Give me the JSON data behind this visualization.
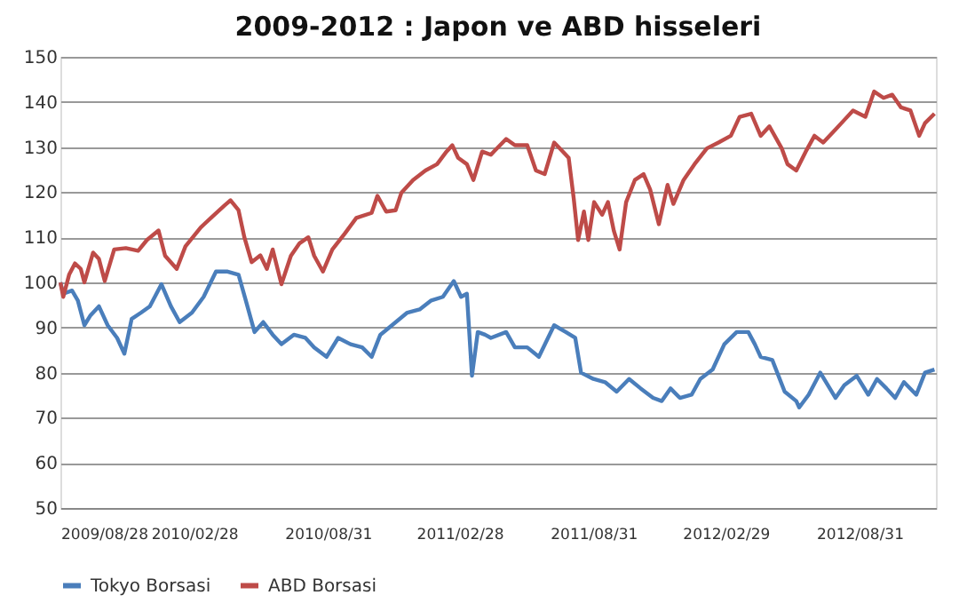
{
  "chart_data": {
    "type": "line",
    "title": "2009-2012 : Japon ve ABD hisseleri",
    "ylim": [
      50,
      150
    ],
    "yticks": [
      50,
      60,
      70,
      80,
      90,
      100,
      110,
      120,
      130,
      140,
      150
    ],
    "xlim": [
      "2009-08-28",
      "2012-12-14"
    ],
    "xticks": [
      {
        "value": "2009-08-28",
        "label": "2009/08/28"
      },
      {
        "value": "2010-02-28",
        "label": "2010/02/28"
      },
      {
        "value": "2010-08-31",
        "label": "2010/08/31"
      },
      {
        "value": "2011-02-28",
        "label": "2011/02/28"
      },
      {
        "value": "2011-08-31",
        "label": "2011/08/31"
      },
      {
        "value": "2012-02-29",
        "label": "2012/02/29"
      },
      {
        "value": "2012-08-31",
        "label": "2012/08/31"
      }
    ],
    "grid": "y",
    "legend": "bottom",
    "marker": "none",
    "line_style": "solid",
    "series": [
      {
        "name": "Tokyo Borsasi",
        "color": "#4a7ebb",
        "x": [
          "2009-08-28",
          "2009-09-01",
          "2009-09-13",
          "2009-09-21",
          "2009-09-30",
          "2009-10-08",
          "2009-10-20",
          "2009-11-01",
          "2009-11-14",
          "2009-11-24",
          "2009-12-04",
          "2009-12-17",
          "2009-12-29",
          "2010-01-14",
          "2010-01-27",
          "2010-02-08",
          "2010-02-25",
          "2010-03-13",
          "2010-03-30",
          "2010-04-15",
          "2010-04-30",
          "2010-05-10",
          "2010-05-22",
          "2010-06-03",
          "2010-06-16",
          "2010-06-28",
          "2010-07-15",
          "2010-07-31",
          "2010-08-12",
          "2010-08-29",
          "2010-09-14",
          "2010-10-01",
          "2010-10-17",
          "2010-10-30",
          "2010-11-11",
          "2010-11-27",
          "2010-12-18",
          "2011-01-04",
          "2011-01-20",
          "2011-02-05",
          "2011-02-20",
          "2011-03-02",
          "2011-03-10",
          "2011-03-17",
          "2011-03-25",
          "2011-04-04",
          "2011-04-12",
          "2011-05-03",
          "2011-05-15",
          "2011-06-01",
          "2011-06-17",
          "2011-07-08",
          "2011-07-24",
          "2011-08-06",
          "2011-08-14",
          "2011-08-31",
          "2011-09-16",
          "2011-10-02",
          "2011-10-19",
          "2011-11-04",
          "2011-11-21",
          "2011-12-03",
          "2011-12-15",
          "2011-12-28",
          "2012-01-13",
          "2012-01-25",
          "2012-02-11",
          "2012-02-27",
          "2012-03-15",
          "2012-03-31",
          "2012-04-09",
          "2012-04-17",
          "2012-05-03",
          "2012-05-20",
          "2012-06-05",
          "2012-06-09",
          "2012-06-22",
          "2012-07-08",
          "2012-07-29",
          "2012-08-10",
          "2012-08-27",
          "2012-09-12",
          "2012-09-24",
          "2012-10-07",
          "2012-10-19",
          "2012-10-31",
          "2012-11-17",
          "2012-11-29",
          "2012-12-12"
        ],
        "values": [
          100,
          97.5,
          98.2,
          96,
          90.5,
          92.6,
          94.7,
          90.5,
          87.7,
          84.2,
          91.9,
          93.3,
          94.7,
          99.6,
          94.7,
          91.2,
          93.3,
          96.8,
          102.4,
          102.4,
          101.7,
          96,
          89,
          91.2,
          88.4,
          86.3,
          88.4,
          87.7,
          85.6,
          83.5,
          87.7,
          86.3,
          85.6,
          83.5,
          88.4,
          90.5,
          93.3,
          94,
          96,
          96.8,
          100.3,
          96.8,
          97.5,
          79.3,
          89,
          88.4,
          87.7,
          89,
          85.6,
          85.6,
          83.5,
          90.5,
          89,
          87.7,
          80,
          78.6,
          77.9,
          75.8,
          78.6,
          76.5,
          74.4,
          73.7,
          76.5,
          74.4,
          75.1,
          78.6,
          80.7,
          86.3,
          89,
          89,
          86.3,
          83.5,
          82.8,
          75.8,
          73.7,
          72.3,
          75.1,
          80,
          74.4,
          77.2,
          79.3,
          75.1,
          78.6,
          76.5,
          74.4,
          77.9,
          75.1,
          80,
          80.7
        ]
      },
      {
        "name": "ABD Borsasi",
        "color": "#be4b48",
        "x": [
          "2009-08-28",
          "2009-09-01",
          "2009-09-09",
          "2009-09-17",
          "2009-09-25",
          "2009-09-30",
          "2009-10-12",
          "2009-10-20",
          "2009-10-28",
          "2009-11-10",
          "2009-11-26",
          "2009-12-13",
          "2009-12-25",
          "2010-01-10",
          "2010-01-19",
          "2010-02-04",
          "2010-02-16",
          "2010-03-09",
          "2010-03-25",
          "2010-04-11",
          "2010-04-19",
          "2010-04-30",
          "2010-05-08",
          "2010-05-18",
          "2010-05-30",
          "2010-06-08",
          "2010-06-16",
          "2010-06-28",
          "2010-07-11",
          "2010-07-23",
          "2010-08-04",
          "2010-08-12",
          "2010-08-24",
          "2010-09-06",
          "2010-09-23",
          "2010-10-09",
          "2010-10-30",
          "2010-11-07",
          "2010-11-19",
          "2010-12-02",
          "2010-12-10",
          "2010-12-26",
          "2011-01-12",
          "2011-01-28",
          "2011-02-10",
          "2011-02-18",
          "2011-02-26",
          "2011-03-10",
          "2011-03-19",
          "2011-03-31",
          "2011-04-12",
          "2011-04-16",
          "2011-05-03",
          "2011-05-15",
          "2011-06-01",
          "2011-06-13",
          "2011-06-25",
          "2011-07-08",
          "2011-07-20",
          "2011-07-28",
          "2011-08-04",
          "2011-08-10",
          "2011-08-18",
          "2011-08-24",
          "2011-09-01",
          "2011-09-12",
          "2011-09-20",
          "2011-09-28",
          "2011-10-06",
          "2011-10-15",
          "2011-10-27",
          "2011-11-08",
          "2011-11-17",
          "2011-11-29",
          "2011-12-11",
          "2011-12-19",
          "2012-01-02",
          "2012-01-17",
          "2012-02-03",
          "2012-02-19",
          "2012-03-07",
          "2012-03-19",
          "2012-04-04",
          "2012-04-17",
          "2012-04-29",
          "2012-05-16",
          "2012-05-24",
          "2012-06-05",
          "2012-06-18",
          "2012-06-30",
          "2012-07-12",
          "2012-07-29",
          "2012-08-10",
          "2012-08-22",
          "2012-09-08",
          "2012-09-20",
          "2012-10-03",
          "2012-10-15",
          "2012-10-27",
          "2012-11-09",
          "2012-11-21",
          "2012-11-29",
          "2012-12-12"
        ],
        "values": [
          100,
          96.8,
          101.7,
          104.2,
          103,
          100,
          106.6,
          105.2,
          100.3,
          107.3,
          107.6,
          107,
          109.4,
          111.5,
          105.9,
          103,
          108,
          112.2,
          114.6,
          117.1,
          118.2,
          116,
          110,
          104.5,
          106,
          103,
          107.3,
          99.6,
          105.9,
          108.7,
          110,
          105.9,
          102.4,
          107.3,
          110.8,
          114.3,
          115.4,
          119.2,
          115.7,
          116,
          119.9,
          122.7,
          124.8,
          126.2,
          129,
          130.4,
          127.6,
          126.2,
          122.7,
          129,
          128.3,
          129,
          131.8,
          130.4,
          130.4,
          124.8,
          124,
          131,
          129,
          127.6,
          118.5,
          109.4,
          115.7,
          109.4,
          117.8,
          115,
          117.8,
          111.5,
          107.3,
          117.8,
          122.7,
          124,
          120.6,
          112.9,
          121.6,
          117.4,
          122.7,
          126.2,
          129.7,
          131,
          132.5,
          136.7,
          137.4,
          132.5,
          134.6,
          129.7,
          126.2,
          124.8,
          129,
          132.5,
          131,
          133.9,
          136,
          138.1,
          136.7,
          142.3,
          140.9,
          141.6,
          138.8,
          138.1,
          132.5,
          135.3,
          137.4
        ]
      }
    ]
  }
}
